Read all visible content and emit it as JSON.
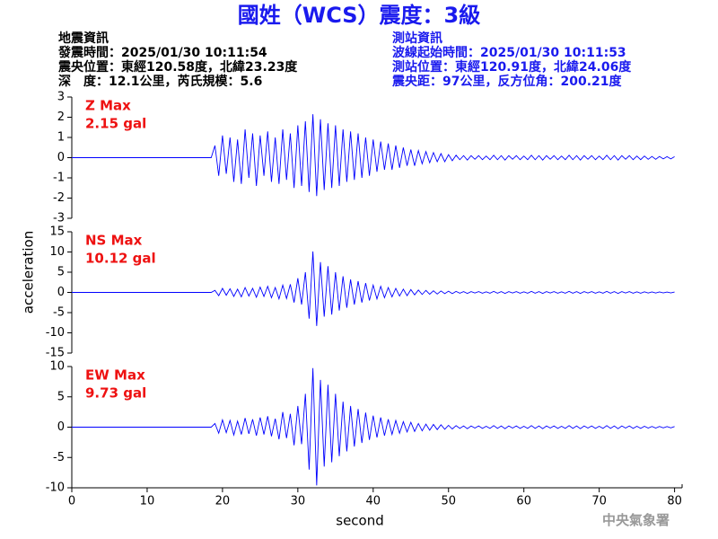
{
  "header": {
    "title": "國姓（WCS）震度：3級",
    "left": [
      "地震資訊",
      "發震時間：2025/01/30 10:11:54",
      "震央位置：東經120.58度，北緯23.23度",
      "深　度：12.1公里，芮氏規模：5.6"
    ],
    "right": [
      "測站資訊",
      "波線起始時間：2025/01/30 10:11:53",
      "測站位置：東經120.91度，北緯24.06度",
      "震央距：97公里，反方位角：200.21度"
    ],
    "credit": "中央氣象署"
  },
  "chart_data": [
    {
      "type": "line",
      "annotation": [
        "Z Max",
        "2.15 gal"
      ],
      "xlim": [
        0,
        81
      ],
      "ylim": [
        -3,
        3
      ],
      "yticks": [
        -3,
        -2,
        -1,
        0,
        1,
        2,
        3
      ],
      "x": [
        0,
        0.5,
        1,
        1.5,
        2,
        2.5,
        3,
        3.5,
        4,
        4.5,
        5,
        5.5,
        6,
        6.5,
        7,
        7.5,
        8,
        8.5,
        9,
        9.5,
        10,
        10.5,
        11,
        11.5,
        12,
        12.5,
        13,
        13.5,
        14,
        14.5,
        15,
        15.5,
        16,
        16.5,
        17,
        17.5,
        18,
        18.5,
        19,
        19.5,
        20,
        20.5,
        21,
        21.5,
        22,
        22.5,
        23,
        23.5,
        24,
        24.5,
        25,
        25.5,
        26,
        26.5,
        27,
        27.5,
        28,
        28.5,
        29,
        29.5,
        30,
        30.5,
        31,
        31.5,
        32,
        32.5,
        33,
        33.5,
        34,
        34.5,
        35,
        35.5,
        36,
        36.5,
        37,
        37.5,
        38,
        38.5,
        39,
        39.5,
        40,
        40.5,
        41,
        41.5,
        42,
        42.5,
        43,
        43.5,
        44,
        44.5,
        45,
        45.5,
        46,
        46.5,
        47,
        47.5,
        48,
        48.5,
        49,
        49.5,
        50,
        50.5,
        51,
        51.5,
        52,
        52.5,
        53,
        53.5,
        54,
        54.5,
        55,
        55.5,
        56,
        56.5,
        57,
        57.5,
        58,
        58.5,
        59,
        59.5,
        60,
        60.5,
        61,
        61.5,
        62,
        62.5,
        63,
        63.5,
        64,
        64.5,
        65,
        65.5,
        66,
        66.5,
        67,
        67.5,
        68,
        68.5,
        69,
        69.5,
        70,
        70.5,
        71,
        71.5,
        72,
        72.5,
        73,
        73.5,
        74,
        74.5,
        75,
        75.5,
        76,
        76.5,
        77,
        77.5,
        78,
        78.5,
        79,
        79.5,
        80
      ],
      "series": [
        {
          "color": "#0000ff",
          "values": [
            0,
            0,
            0,
            0,
            0,
            0,
            0,
            0,
            0,
            0,
            0,
            0,
            0,
            0,
            0,
            0,
            0,
            0,
            0,
            0,
            0,
            0,
            0,
            0,
            0,
            0,
            0,
            0,
            0,
            0,
            0,
            0,
            0,
            0,
            0,
            0,
            0,
            0,
            0.6,
            -0.9,
            1.1,
            -0.8,
            1.0,
            -1.2,
            0.9,
            -1.3,
            1.4,
            -1.0,
            1.2,
            -1.4,
            1.1,
            -0.9,
            1.3,
            -1.2,
            1.0,
            -1.3,
            1.4,
            -1.1,
            1.2,
            -1.5,
            1.6,
            -1.4,
            1.8,
            -1.7,
            2.15,
            -1.9,
            1.9,
            -1.6,
            1.7,
            -1.5,
            1.6,
            -1.4,
            1.4,
            -1.2,
            1.3,
            -1.1,
            1.2,
            -1.0,
            1.0,
            -0.9,
            0.9,
            -0.7,
            0.8,
            -0.6,
            0.7,
            -0.6,
            0.6,
            -0.5,
            0.5,
            -0.4,
            0.4,
            -0.4,
            0.35,
            -0.3,
            0.3,
            -0.25,
            0.25,
            -0.2,
            0.2,
            -0.2,
            0.15,
            -0.15,
            0.12,
            -0.1,
            0.1,
            -0.12,
            0.1,
            -0.08,
            0.1,
            -0.1,
            0.08,
            -0.1,
            0.12,
            -0.1,
            0.1,
            -0.12,
            0.1,
            -0.08,
            0.1,
            -0.1,
            0.08,
            -0.1,
            0.12,
            -0.1,
            0.1,
            -0.12,
            0.1,
            -0.08,
            0.1,
            -0.1,
            0.08,
            -0.1,
            0.12,
            -0.1,
            0.1,
            -0.12,
            0.1,
            -0.08,
            0.1,
            -0.1,
            0.08,
            -0.1,
            0.12,
            -0.1,
            0.1,
            -0.12,
            0.1,
            -0.08,
            0.1,
            -0.1,
            0.08,
            -0.1,
            0.08,
            -0.08,
            0.06,
            -0.08,
            0.06,
            -0.06,
            0.05,
            -0.06,
            0.05
          ]
        }
      ]
    },
    {
      "type": "line",
      "annotation": [
        "NS Max",
        "10.12 gal"
      ],
      "ylabel": "acceleration",
      "xlim": [
        0,
        81
      ],
      "ylim": [
        -15,
        15
      ],
      "yticks": [
        -15,
        -10,
        -5,
        0,
        5,
        10,
        15
      ],
      "x": [
        0,
        0.5,
        1,
        1.5,
        2,
        2.5,
        3,
        3.5,
        4,
        4.5,
        5,
        5.5,
        6,
        6.5,
        7,
        7.5,
        8,
        8.5,
        9,
        9.5,
        10,
        10.5,
        11,
        11.5,
        12,
        12.5,
        13,
        13.5,
        14,
        14.5,
        15,
        15.5,
        16,
        16.5,
        17,
        17.5,
        18,
        18.5,
        19,
        19.5,
        20,
        20.5,
        21,
        21.5,
        22,
        22.5,
        23,
        23.5,
        24,
        24.5,
        25,
        25.5,
        26,
        26.5,
        27,
        27.5,
        28,
        28.5,
        29,
        29.5,
        30,
        30.5,
        31,
        31.5,
        32,
        32.5,
        33,
        33.5,
        34,
        34.5,
        35,
        35.5,
        36,
        36.5,
        37,
        37.5,
        38,
        38.5,
        39,
        39.5,
        40,
        40.5,
        41,
        41.5,
        42,
        42.5,
        43,
        43.5,
        44,
        44.5,
        45,
        45.5,
        46,
        46.5,
        47,
        47.5,
        48,
        48.5,
        49,
        49.5,
        50,
        50.5,
        51,
        51.5,
        52,
        52.5,
        53,
        53.5,
        54,
        54.5,
        55,
        55.5,
        56,
        56.5,
        57,
        57.5,
        58,
        58.5,
        59,
        59.5,
        60,
        60.5,
        61,
        61.5,
        62,
        62.5,
        63,
        63.5,
        64,
        64.5,
        65,
        65.5,
        66,
        66.5,
        67,
        67.5,
        68,
        68.5,
        69,
        69.5,
        70,
        70.5,
        71,
        71.5,
        72,
        72.5,
        73,
        73.5,
        74,
        74.5,
        75,
        75.5,
        76,
        76.5,
        77,
        77.5,
        78,
        78.5,
        79,
        79.5,
        80
      ],
      "series": [
        {
          "color": "#0000ff",
          "values": [
            0,
            0,
            0,
            0,
            0,
            0,
            0,
            0,
            0,
            0,
            0,
            0,
            0,
            0,
            0,
            0,
            0,
            0,
            0,
            0,
            0,
            0,
            0,
            0,
            0,
            0,
            0,
            0,
            0,
            0,
            0,
            0,
            0,
            0,
            0,
            0,
            0,
            0,
            0.5,
            -0.8,
            1.0,
            -0.7,
            0.9,
            -1.0,
            0.8,
            -1.1,
            1.2,
            -0.9,
            1.0,
            -1.2,
            1.3,
            -1.0,
            1.5,
            -1.3,
            1.2,
            -1.6,
            1.8,
            -1.5,
            2.0,
            -2.5,
            3.5,
            -3.0,
            5.0,
            -6.5,
            10.12,
            -8.3,
            7.5,
            -6.0,
            6.5,
            -5.5,
            5.0,
            -4.5,
            4.0,
            -3.8,
            3.2,
            -3.0,
            2.8,
            -2.5,
            2.3,
            -2.0,
            1.8,
            -1.6,
            1.5,
            -1.3,
            1.2,
            -1.1,
            1.0,
            -0.9,
            0.8,
            -0.8,
            0.7,
            -0.6,
            0.6,
            -0.5,
            0.5,
            -0.45,
            0.4,
            -0.4,
            0.35,
            -0.3,
            0.3,
            -0.3,
            0.25,
            -0.2,
            0.2,
            -0.25,
            0.2,
            -0.15,
            0.2,
            -0.2,
            0.15,
            -0.2,
            0.25,
            -0.2,
            0.2,
            -0.25,
            0.2,
            -0.15,
            0.2,
            -0.2,
            0.15,
            -0.2,
            0.25,
            -0.2,
            0.2,
            -0.25,
            0.2,
            -0.15,
            0.2,
            -0.2,
            0.15,
            -0.2,
            0.25,
            -0.2,
            0.2,
            -0.25,
            0.2,
            -0.15,
            0.2,
            -0.2,
            0.15,
            -0.2,
            0.25,
            -0.2,
            0.2,
            -0.25,
            0.2,
            -0.15,
            0.2,
            -0.2,
            0.15,
            -0.2,
            0.15,
            -0.15,
            0.12,
            -0.15,
            0.12,
            -0.12,
            0.1,
            -0.12,
            0.1
          ]
        }
      ]
    },
    {
      "type": "line",
      "annotation": [
        "EW Max",
        "9.73 gal"
      ],
      "xlabel": "second",
      "xlim": [
        0,
        81
      ],
      "ylim": [
        -10,
        10
      ],
      "yticks": [
        -10,
        -5,
        0,
        5,
        10
      ],
      "xticks": [
        0,
        10,
        20,
        30,
        40,
        50,
        60,
        70,
        80
      ],
      "x": [
        0,
        0.5,
        1,
        1.5,
        2,
        2.5,
        3,
        3.5,
        4,
        4.5,
        5,
        5.5,
        6,
        6.5,
        7,
        7.5,
        8,
        8.5,
        9,
        9.5,
        10,
        10.5,
        11,
        11.5,
        12,
        12.5,
        13,
        13.5,
        14,
        14.5,
        15,
        15.5,
        16,
        16.5,
        17,
        17.5,
        18,
        18.5,
        19,
        19.5,
        20,
        20.5,
        21,
        21.5,
        22,
        22.5,
        23,
        23.5,
        24,
        24.5,
        25,
        25.5,
        26,
        26.5,
        27,
        27.5,
        28,
        28.5,
        29,
        29.5,
        30,
        30.5,
        31,
        31.5,
        32,
        32.5,
        33,
        33.5,
        34,
        34.5,
        35,
        35.5,
        36,
        36.5,
        37,
        37.5,
        38,
        38.5,
        39,
        39.5,
        40,
        40.5,
        41,
        41.5,
        42,
        42.5,
        43,
        43.5,
        44,
        44.5,
        45,
        45.5,
        46,
        46.5,
        47,
        47.5,
        48,
        48.5,
        49,
        49.5,
        50,
        50.5,
        51,
        51.5,
        52,
        52.5,
        53,
        53.5,
        54,
        54.5,
        55,
        55.5,
        56,
        56.5,
        57,
        57.5,
        58,
        58.5,
        59,
        59.5,
        60,
        60.5,
        61,
        61.5,
        62,
        62.5,
        63,
        63.5,
        64,
        64.5,
        65,
        65.5,
        66,
        66.5,
        67,
        67.5,
        68,
        68.5,
        69,
        69.5,
        70,
        70.5,
        71,
        71.5,
        72,
        72.5,
        73,
        73.5,
        74,
        74.5,
        75,
        75.5,
        76,
        76.5,
        77,
        77.5,
        78,
        78.5,
        79,
        79.5,
        80
      ],
      "series": [
        {
          "color": "#0000ff",
          "values": [
            0,
            0,
            0,
            0,
            0,
            0,
            0,
            0,
            0,
            0,
            0,
            0,
            0,
            0,
            0,
            0,
            0,
            0,
            0,
            0,
            0,
            0,
            0,
            0,
            0,
            0,
            0,
            0,
            0,
            0,
            0,
            0,
            0,
            0,
            0,
            0,
            0,
            0,
            0.6,
            -1.0,
            1.2,
            -0.9,
            1.1,
            -1.3,
            1.0,
            -1.2,
            1.5,
            -1.1,
            1.3,
            -1.4,
            1.6,
            -1.2,
            1.8,
            -1.5,
            1.4,
            -2.0,
            2.5,
            -1.8,
            2.2,
            -3.0,
            3.5,
            -2.8,
            5.5,
            -7.0,
            9.73,
            -9.6,
            7.8,
            -6.5,
            7.0,
            -5.8,
            5.5,
            -4.8,
            4.2,
            -4.0,
            3.5,
            -3.2,
            3.0,
            -2.6,
            2.4,
            -2.1,
            1.9,
            -1.7,
            1.6,
            -1.4,
            1.3,
            -1.2,
            1.1,
            -1.0,
            0.9,
            -0.8,
            0.8,
            -0.7,
            0.6,
            -0.6,
            0.5,
            -0.5,
            0.45,
            -0.4,
            0.4,
            -0.35,
            0.3,
            -0.3,
            0.25,
            -0.2,
            0.2,
            -0.25,
            0.2,
            -0.15,
            0.2,
            -0.2,
            0.15,
            -0.2,
            0.25,
            -0.2,
            0.2,
            -0.25,
            0.2,
            -0.15,
            0.2,
            -0.2,
            0.15,
            -0.2,
            0.25,
            -0.2,
            0.2,
            -0.25,
            0.2,
            -0.15,
            0.2,
            -0.2,
            0.15,
            -0.2,
            0.25,
            -0.2,
            0.2,
            -0.25,
            0.2,
            -0.15,
            0.2,
            -0.2,
            0.15,
            -0.2,
            0.25,
            -0.2,
            0.2,
            -0.25,
            0.2,
            -0.15,
            0.2,
            -0.2,
            0.15,
            -0.2,
            0.15,
            -0.15,
            0.12,
            -0.15,
            0.12,
            -0.12,
            0.1,
            -0.12,
            0.1
          ]
        }
      ]
    }
  ]
}
